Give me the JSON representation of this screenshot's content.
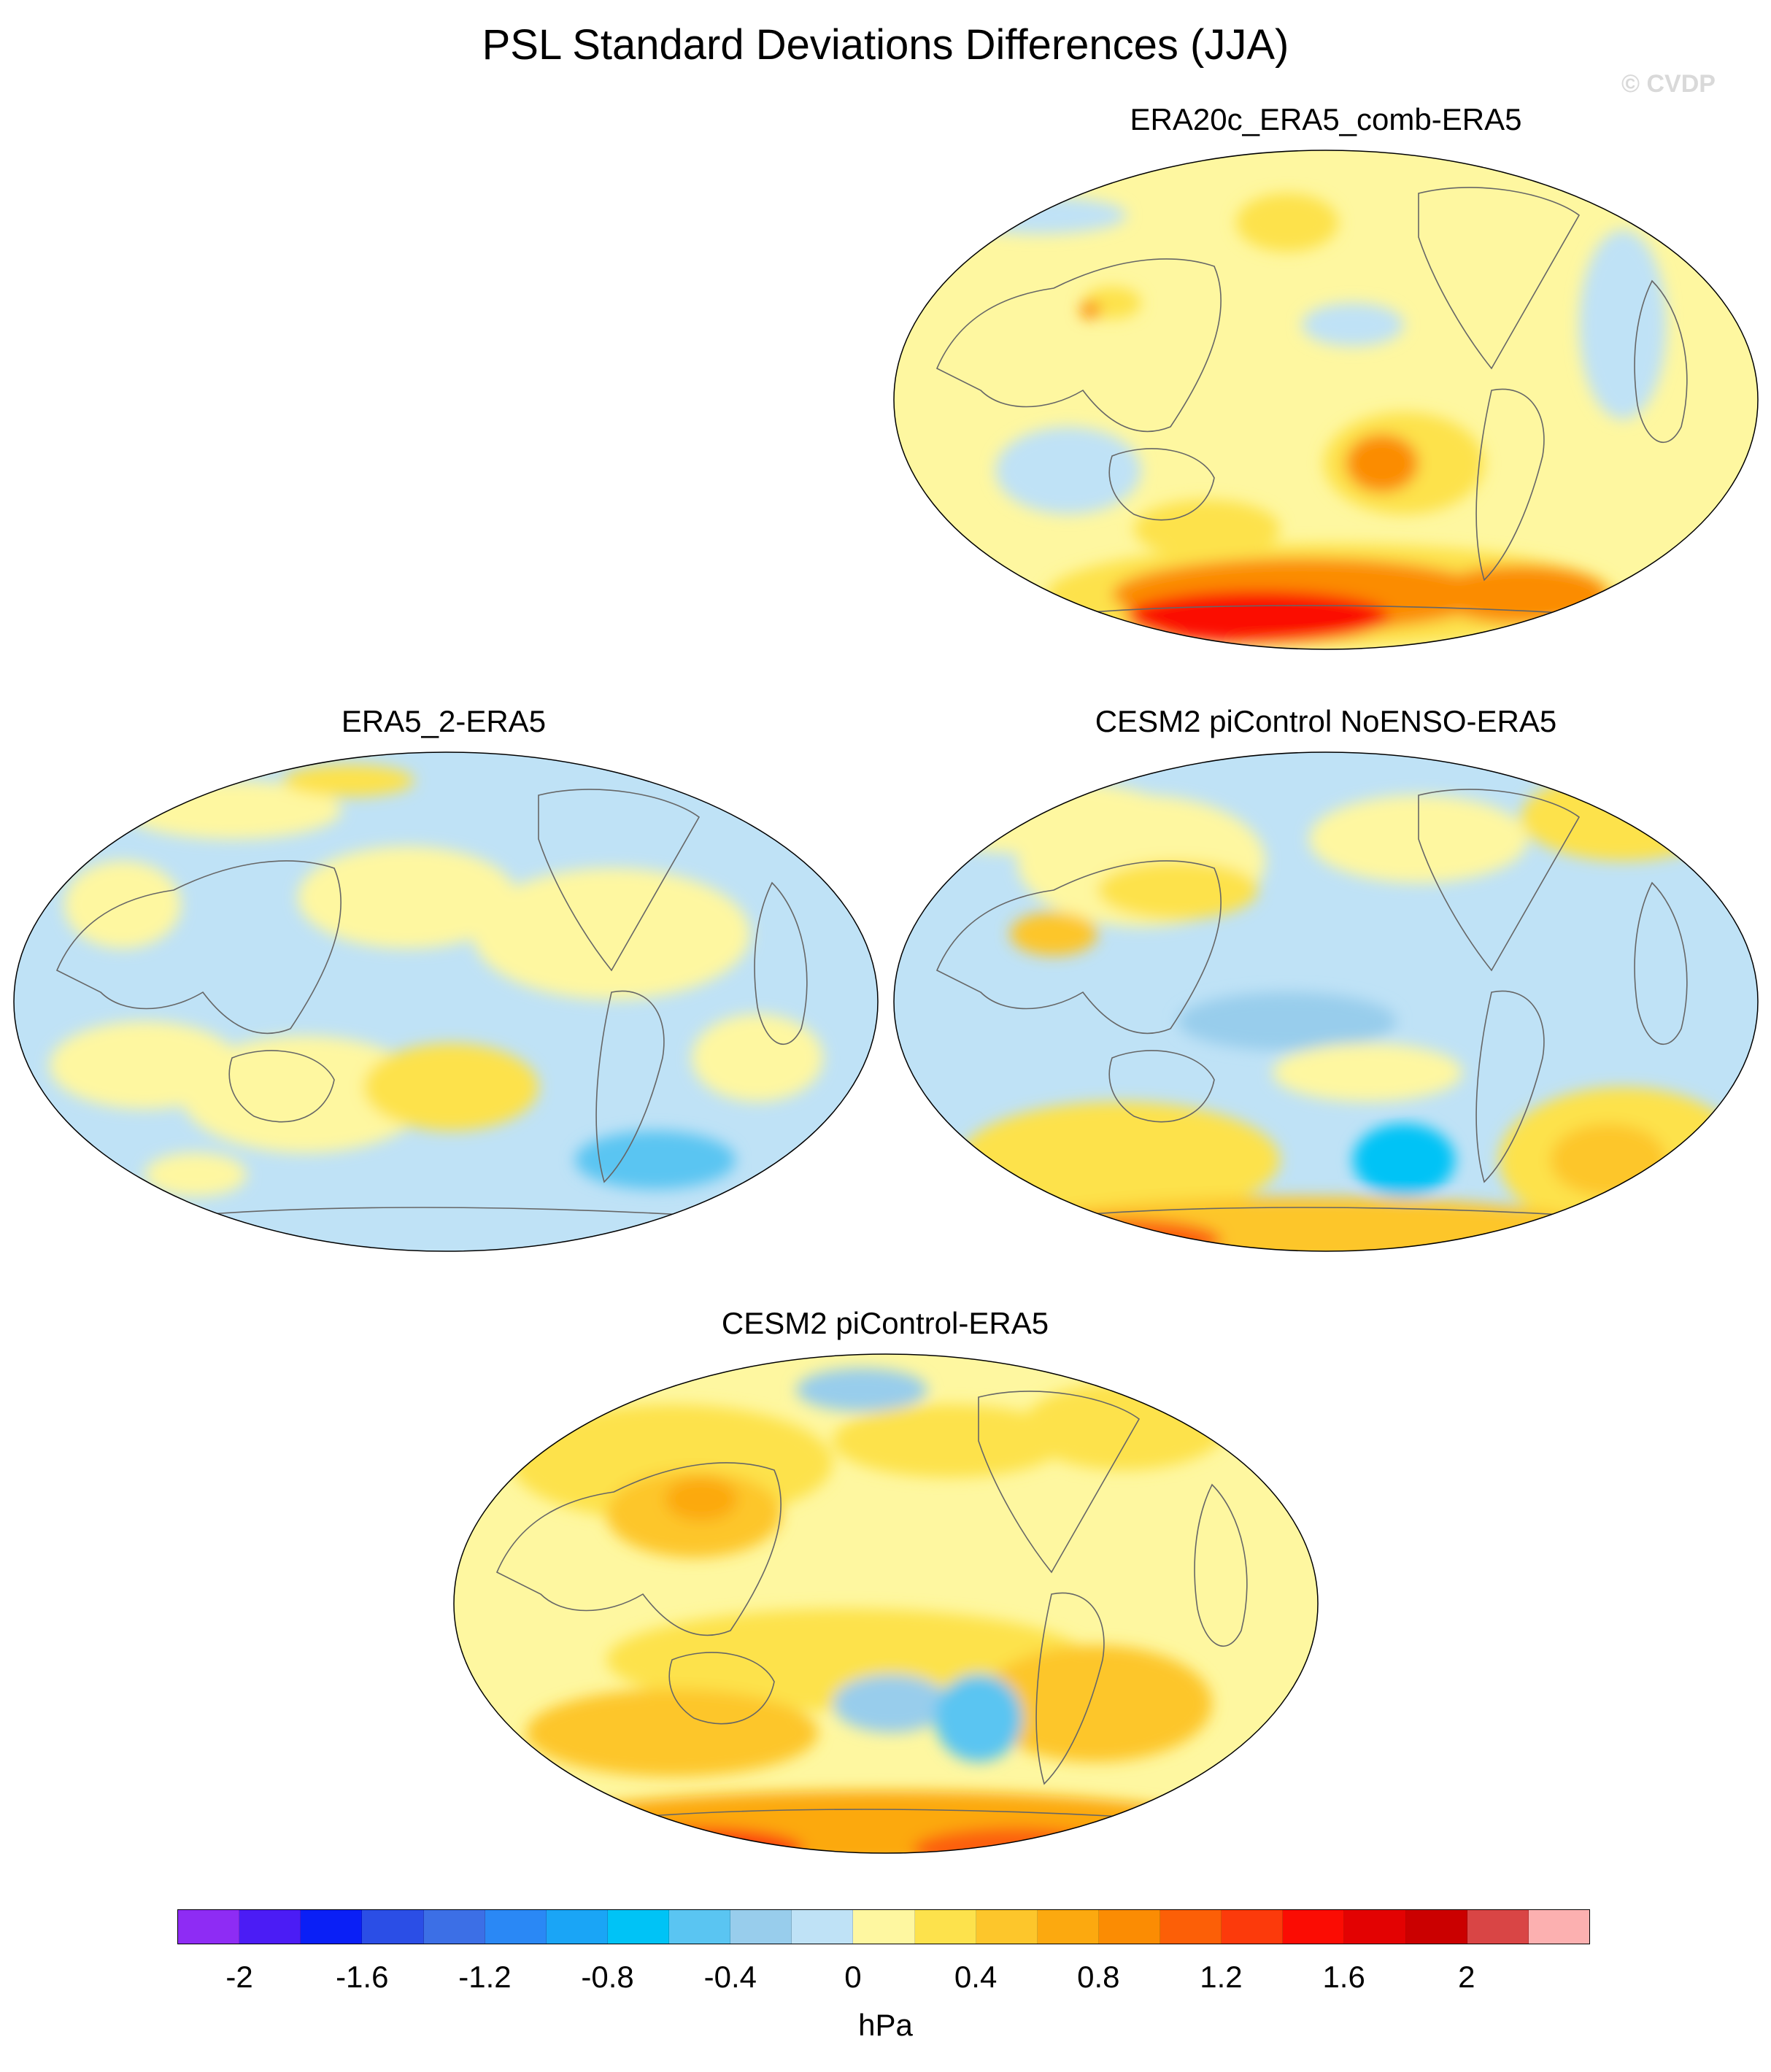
{
  "title": "PSL Standard Deviations Differences (JJA)",
  "watermark": "© CVDP",
  "panels": [
    {
      "name": "ERA20c_ERA5_comb-ERA5",
      "pattern": "era20c"
    },
    {
      "name": "ERA5_2-ERA5",
      "pattern": "era5_2"
    },
    {
      "name": "CESM2 piControl NoENSO-ERA5",
      "pattern": "noenso"
    },
    {
      "name": "CESM2 piControl-ERA5",
      "pattern": "picontrol"
    }
  ],
  "colorbar": {
    "units": "hPa",
    "colors": [
      "#8e2cf4",
      "#4b1cf5",
      "#0a1ff6",
      "#2b4ee6",
      "#3c6fe6",
      "#2a88f5",
      "#1aa5f6",
      "#00c3f6",
      "#5ac5f2",
      "#98cdec",
      "#bfe2f6",
      "#fef7a0",
      "#fde24c",
      "#fdc62b",
      "#fca90f",
      "#fb8c03",
      "#fc5f07",
      "#fc3a0b",
      "#fb0c03",
      "#e30202",
      "#cb0000",
      "#d94545",
      "#fcb0b0"
    ],
    "labels": [
      "-2",
      "-1.6",
      "-1.2",
      "-0.8",
      "-0.4",
      "0",
      "0.4",
      "0.8",
      "1.2",
      "1.6",
      "2"
    ]
  }
}
